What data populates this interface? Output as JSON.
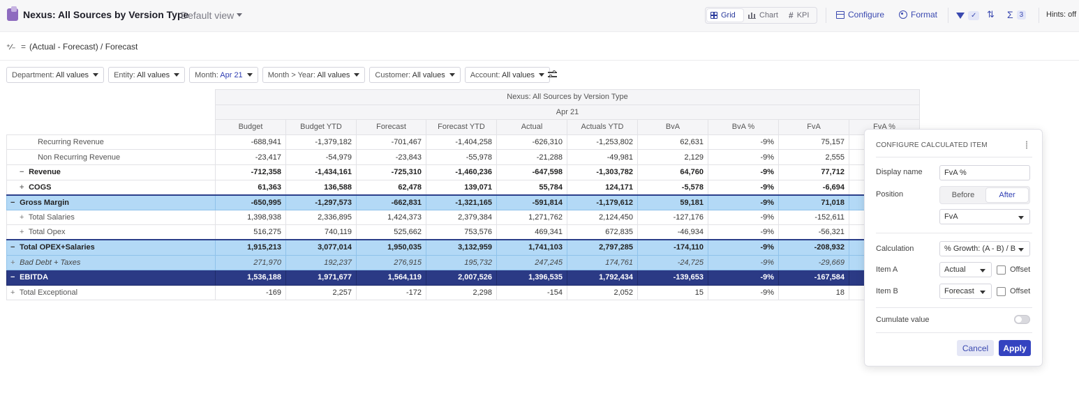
{
  "header": {
    "title": "Nexus: All Sources by Version Type",
    "view_name": "Default view",
    "view_tabs": [
      {
        "label": "Grid",
        "icon": "grid-icon",
        "active": true
      },
      {
        "label": "Chart",
        "icon": "chart-icon",
        "active": false
      },
      {
        "label": "KPI",
        "icon": "hash-icon",
        "active": false
      }
    ],
    "configure_label": "Configure",
    "format_label": "Format",
    "sum_badge": "3",
    "hints_label": "Hints: off",
    "accent_color": "#3a49b0"
  },
  "formula": {
    "icon": "calculated-icon",
    "equals": "=",
    "expression": "(Actual - Forecast) / Forecast"
  },
  "filters": [
    {
      "name": "Department:",
      "value": "All values",
      "highlight": false
    },
    {
      "name": "Entity:",
      "value": "All values",
      "highlight": false
    },
    {
      "name": "Month:",
      "value": "Apr 21",
      "highlight": true
    },
    {
      "name": "Month > Year:",
      "value": "All values",
      "highlight": false
    },
    {
      "name": "Customer:",
      "value": "All values",
      "highlight": false
    },
    {
      "name": "Account:",
      "value": "All values",
      "highlight": false
    }
  ],
  "grid": {
    "header_title": "Nexus: All Sources by Version Type",
    "header_period": "Apr 21",
    "columns": [
      "Budget",
      "Budget YTD",
      "Forecast",
      "Forecast YTD",
      "Actual",
      "Actuals YTD",
      "BvA",
      "BvA %",
      "FvA",
      "FvA %"
    ],
    "rows": [
      {
        "label": "Recurring Revenue",
        "indent": 2,
        "sign": "",
        "style": "normal",
        "values": [
          "-688,941",
          "-1,379,182",
          "-701,467",
          "-1,404,258",
          "-626,310",
          "-1,253,802",
          "62,631",
          "-9%",
          "75,157",
          ""
        ]
      },
      {
        "label": "Non Recurring Revenue",
        "indent": 2,
        "sign": "",
        "style": "normal",
        "values": [
          "-23,417",
          "-54,979",
          "-23,843",
          "-55,978",
          "-21,288",
          "-49,981",
          "2,129",
          "-9%",
          "2,555",
          ""
        ]
      },
      {
        "label": "Revenue",
        "indent": 1,
        "sign": "−",
        "style": "bold",
        "values": [
          "-712,358",
          "-1,434,161",
          "-725,310",
          "-1,460,236",
          "-647,598",
          "-1,303,782",
          "64,760",
          "-9%",
          "77,712",
          ""
        ]
      },
      {
        "label": "COGS",
        "indent": 1,
        "sign": "+",
        "style": "bold",
        "values": [
          "61,363",
          "136,588",
          "62,478",
          "139,071",
          "55,784",
          "124,171",
          "-5,578",
          "-9%",
          "-6,694",
          ""
        ]
      },
      {
        "label": "Gross Margin",
        "indent": 0,
        "sign": "−",
        "style": "highlight-top",
        "values": [
          "-650,995",
          "-1,297,573",
          "-662,831",
          "-1,321,165",
          "-591,814",
          "-1,179,612",
          "59,181",
          "-9%",
          "71,018",
          ""
        ]
      },
      {
        "label": "Total Salaries",
        "indent": 1,
        "sign": "+",
        "style": "normal",
        "values": [
          "1,398,938",
          "2,336,895",
          "1,424,373",
          "2,379,384",
          "1,271,762",
          "2,124,450",
          "-127,176",
          "-9%",
          "-152,611",
          ""
        ]
      },
      {
        "label": "Total Opex",
        "indent": 1,
        "sign": "+",
        "style": "normal",
        "values": [
          "516,275",
          "740,119",
          "525,662",
          "753,576",
          "469,341",
          "672,835",
          "-46,934",
          "-9%",
          "-56,321",
          ""
        ]
      },
      {
        "label": "Total OPEX+Salaries",
        "indent": 0,
        "sign": "−",
        "style": "highlight-top",
        "values": [
          "1,915,213",
          "3,077,014",
          "1,950,035",
          "3,132,959",
          "1,741,103",
          "2,797,285",
          "-174,110",
          "-9%",
          "-208,932",
          ""
        ]
      },
      {
        "label": "Bad Debt + Taxes",
        "indent": 0,
        "sign": "+",
        "style": "highlight-italic",
        "values": [
          "271,970",
          "192,237",
          "276,915",
          "195,732",
          "247,245",
          "174,761",
          "-24,725",
          "-9%",
          "-29,669",
          ""
        ]
      },
      {
        "label": "EBITDA",
        "indent": 0,
        "sign": "−",
        "style": "dark",
        "values": [
          "1,536,188",
          "1,971,677",
          "1,564,119",
          "2,007,526",
          "1,396,535",
          "1,792,434",
          "-139,653",
          "-9%",
          "-167,584",
          ""
        ]
      },
      {
        "label": "Total Exceptional",
        "indent": 0,
        "sign": "+",
        "style": "normal",
        "values": [
          "-169",
          "2,257",
          "-172",
          "2,298",
          "-154",
          "2,052",
          "15",
          "-9%",
          "18",
          ""
        ]
      }
    ]
  },
  "panel": {
    "title": "CONFIGURE CALCULATED ITEM",
    "display_name_label": "Display name",
    "display_name_value": "FvA %",
    "position_label": "Position",
    "position_before": "Before",
    "position_after": "After",
    "position_selected": "After",
    "position_ref": "FvA",
    "calculation_label": "Calculation",
    "calculation_value": "% Growth: (A - B) / B",
    "item_a_label": "Item A",
    "item_a_value": "Actual",
    "item_b_label": "Item B",
    "item_b_value": "Forecast",
    "offset_label": "Offset",
    "cumulate_label": "Cumulate value",
    "cumulate_on": false,
    "cancel_label": "Cancel",
    "apply_label": "Apply"
  }
}
